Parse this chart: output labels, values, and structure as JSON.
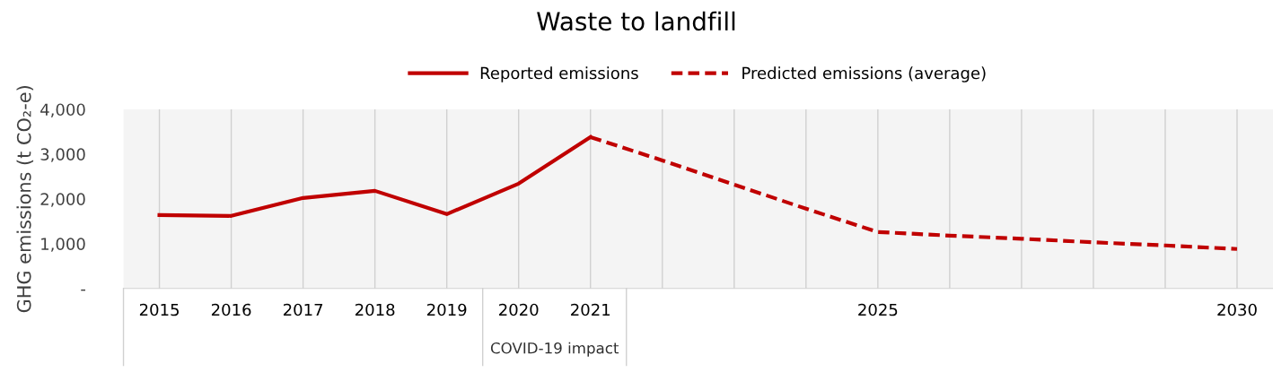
{
  "chart_data": {
    "type": "line",
    "title": "Waste to landfill",
    "ylabel": "GHG emissions (t CO₂-e)",
    "categories": [
      "2015",
      "2016",
      "2017",
      "2018",
      "2019",
      "2020",
      "2021",
      null,
      null,
      null,
      "2025",
      null,
      null,
      null,
      null,
      "2030"
    ],
    "series": [
      {
        "name": "Reported emissions",
        "color": "#c00000",
        "line_style": "solid",
        "values": [
          1640,
          1620,
          2020,
          2180,
          1660,
          2340,
          3380,
          null,
          null,
          null,
          null,
          null,
          null,
          null,
          null,
          null
        ]
      },
      {
        "name": "Predicted emissions (average)",
        "color": "#c00000",
        "line_style": "dashed",
        "values": [
          null,
          null,
          null,
          null,
          null,
          null,
          3380,
          2860,
          2320,
          1780,
          1260,
          1180,
          1110,
          1030,
          960,
          880
        ]
      }
    ],
    "ylim": [
      0,
      4000
    ],
    "yticks": [
      {
        "value": 0,
        "label": "-"
      },
      {
        "value": 1000,
        "label": "1,000"
      },
      {
        "value": 2000,
        "label": "2,000"
      },
      {
        "value": 3000,
        "label": "3,000"
      },
      {
        "value": 4000,
        "label": "4,000"
      }
    ],
    "annotations": [
      "COVID-19 impact"
    ],
    "grid": "x",
    "legend": "top",
    "marker": "none"
  }
}
